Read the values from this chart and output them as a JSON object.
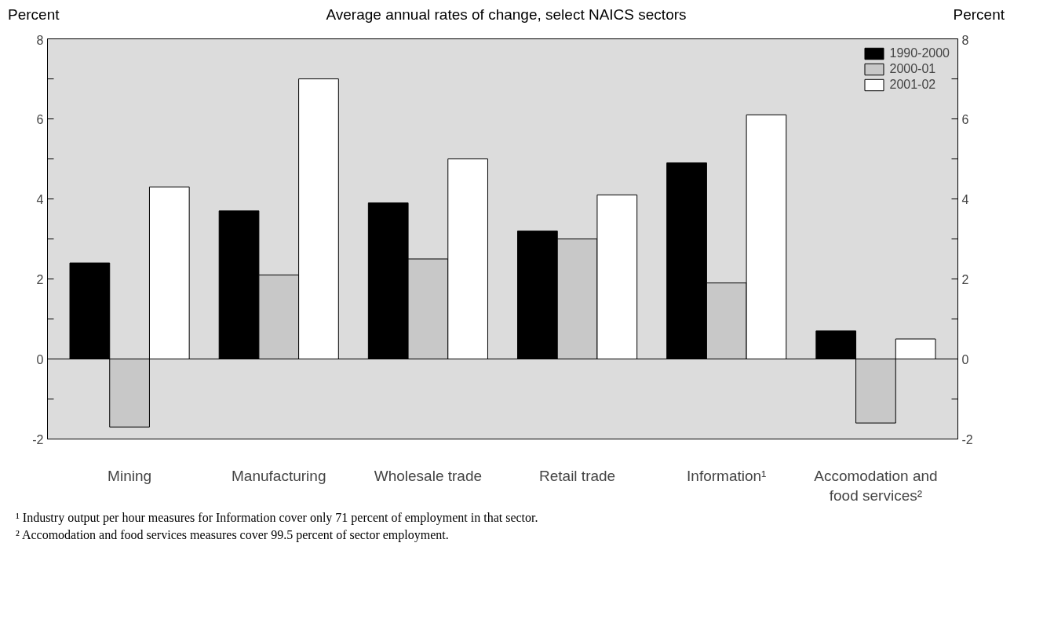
{
  "chart_data": {
    "type": "bar",
    "subtitle": "Average annual rates of change, select NAICS sectors",
    "ylabel": "Percent",
    "y2label": "Percent",
    "categories": [
      "Mining",
      "Manufacturing",
      "Wholesale trade",
      "Retail trade",
      "Information¹",
      "Accomodation and food services²"
    ],
    "series": [
      {
        "name": "1990-2000",
        "color": "#000000",
        "values": [
          2.4,
          3.7,
          3.9,
          3.2,
          4.9,
          0.7
        ]
      },
      {
        "name": "2000-01",
        "color": "#c8c8c8",
        "values": [
          -1.7,
          2.1,
          2.5,
          3.0,
          1.9,
          -1.6
        ]
      },
      {
        "name": "2001-02",
        "color": "#ffffff",
        "values": [
          4.3,
          7.0,
          5.0,
          4.1,
          6.1,
          0.5
        ]
      }
    ],
    "ylim": [
      -2,
      8
    ],
    "yticks": [
      -2,
      {
        "value": -1,
        "label": null
      },
      0,
      {
        "value": 1,
        "label": null
      },
      2,
      {
        "value": 3,
        "label": null
      },
      4,
      {
        "value": 5,
        "label": null
      },
      6,
      {
        "value": 7,
        "label": null
      },
      8
    ],
    "y2lim": [
      -2,
      8
    ],
    "y2ticks": [
      -2,
      {
        "value": -1,
        "label": null
      },
      0,
      {
        "value": 1,
        "label": null
      },
      2,
      {
        "value": 3,
        "label": null
      },
      4,
      {
        "value": 5,
        "label": null
      },
      6,
      {
        "value": 7,
        "label": null
      },
      8
    ],
    "ref_lines": [
      {
        "axis": "y",
        "value": 0,
        "color": "#000000"
      }
    ],
    "grid": false,
    "legend": "top right",
    "annotations": [
      "¹ Industry output per hour measures for Information cover only 71 percent of employment in that sector.",
      "² Accomodation and food services measures cover 99.5 percent of sector employment."
    ]
  }
}
